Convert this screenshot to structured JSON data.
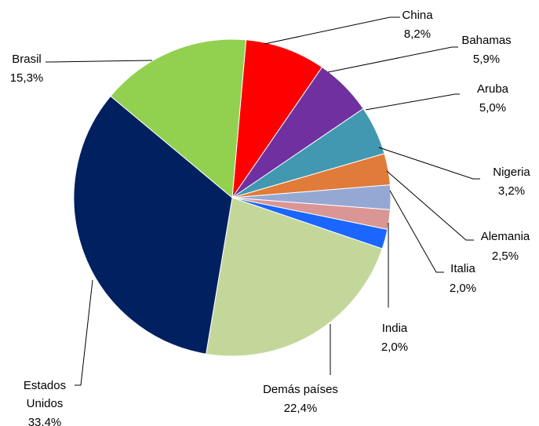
{
  "chart_data": {
    "type": "pie",
    "title": "",
    "start_angle_deg": 85,
    "direction": "clockwise",
    "slices": [
      {
        "label": "China",
        "value_text": "8,2%",
        "value": 8.2,
        "color": "#ff0000"
      },
      {
        "label": "Bahamas",
        "value_text": "5,9%",
        "value": 5.9,
        "color": "#7030a0"
      },
      {
        "label": "Aruba",
        "value_text": "5,0%",
        "value": 5.0,
        "color": "#4198b0"
      },
      {
        "label": "Nigeria",
        "value_text": "3,2%",
        "value": 3.2,
        "color": "#e07b39"
      },
      {
        "label": "Alemania",
        "value_text": "2,5%",
        "value": 2.5,
        "color": "#95a8d4"
      },
      {
        "label": "Italia",
        "value_text": "2,0%",
        "value": 2.0,
        "color": "#d99694"
      },
      {
        "label": "India",
        "value_text": "2,0%",
        "value": 2.0,
        "color": "#1a66ff"
      },
      {
        "label": "Demás países",
        "value_text": "22,4%",
        "value": 22.4,
        "color": "#c4d79b"
      },
      {
        "label": "Estados Unidos",
        "value_text": "33,4%",
        "value": 33.4,
        "color": "#002060"
      },
      {
        "label": "Brasil",
        "value_text": "15,3%",
        "value": 15.3,
        "color": "#92d050"
      }
    ]
  }
}
